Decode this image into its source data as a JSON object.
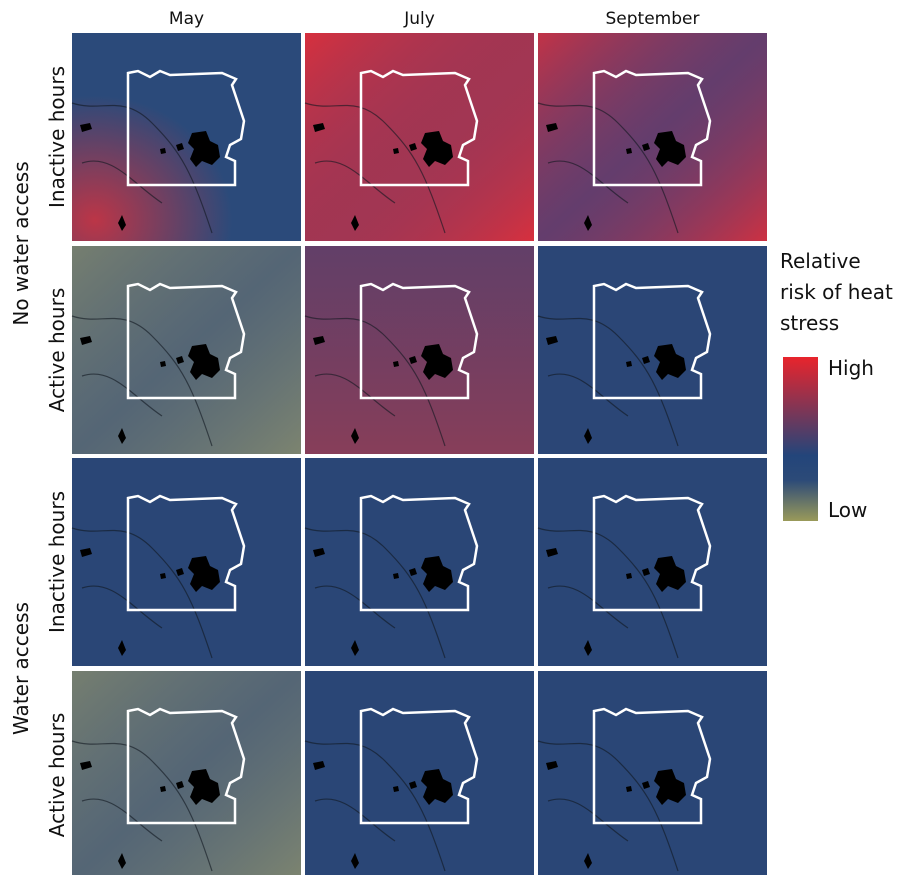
{
  "columns": [
    "May",
    "July",
    "September"
  ],
  "groups": [
    {
      "label": "No water access",
      "rows": [
        "Inactive hours",
        "Active hours"
      ]
    },
    {
      "label": "Water access",
      "rows": [
        "Inactive hours",
        "Active hours"
      ]
    }
  ],
  "legend": {
    "title": [
      "Relative",
      "risk of heat",
      "stress"
    ],
    "high": "High",
    "low": "Low"
  }
}
